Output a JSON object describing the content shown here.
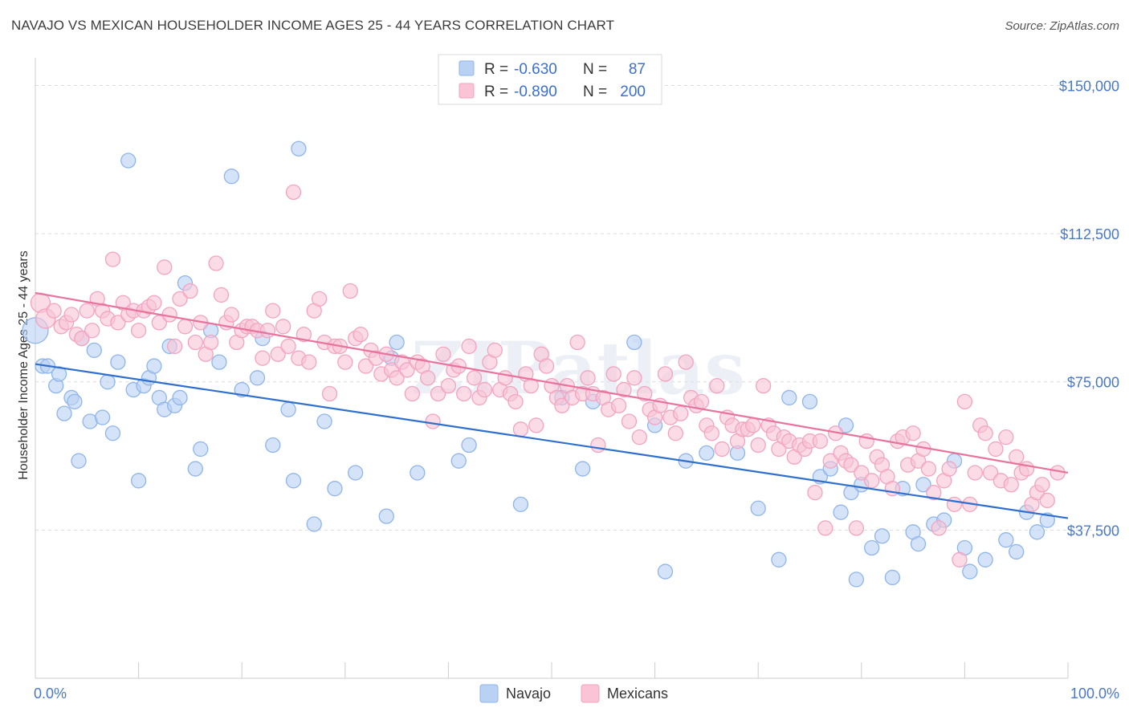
{
  "title": "NAVAJO VS MEXICAN HOUSEHOLDER INCOME AGES 25 - 44 YEARS CORRELATION CHART",
  "source": "Source: ZipAtlas.com",
  "watermark": "ZIPatlas",
  "chart_data": {
    "type": "scatter",
    "ylabel": "Householder Income Ages 25 - 44 years",
    "xlabel": "",
    "xlim": [
      0,
      100
    ],
    "ylim": [
      0,
      157000
    ],
    "x_tick_labels": [
      "0.0%",
      "100.0%"
    ],
    "y_ticks": [
      37500,
      75000,
      112500,
      150000
    ],
    "y_tick_labels": [
      "$37,500",
      "$75,000",
      "$112,500",
      "$150,000"
    ],
    "grid": "horizontal dashed",
    "legend_position": "top-center",
    "stats": [
      {
        "r_label": "R =",
        "r_value": "-0.630",
        "n_label": "N =",
        "n_value": "87"
      },
      {
        "r_label": "R =",
        "r_value": "-0.890",
        "n_label": "N =",
        "n_value": "200"
      }
    ],
    "series": [
      {
        "name": "Navajo",
        "color": "#8fb5ea",
        "fill": "#b9d1f3",
        "line_color": "#2f6fcd",
        "trend": {
          "x0": 0,
          "y0": 79500,
          "x1": 100,
          "y1": 40500
        },
        "points": [
          [
            0,
            88000
          ],
          [
            0.7,
            79000
          ],
          [
            1.2,
            79000
          ],
          [
            2,
            74000
          ],
          [
            2.3,
            77000
          ],
          [
            2.8,
            67000
          ],
          [
            3.5,
            71000
          ],
          [
            3.8,
            70000
          ],
          [
            4.2,
            55000
          ],
          [
            4.5,
            86000
          ],
          [
            5.3,
            65000
          ],
          [
            5.7,
            83000
          ],
          [
            6.5,
            66000
          ],
          [
            7.0,
            75000
          ],
          [
            7.5,
            62000
          ],
          [
            8.0,
            80000
          ],
          [
            9.0,
            131000
          ],
          [
            9.5,
            73000
          ],
          [
            10,
            50000
          ],
          [
            10.5,
            74000
          ],
          [
            11,
            76000
          ],
          [
            11.5,
            79000
          ],
          [
            12,
            71000
          ],
          [
            12.5,
            68000
          ],
          [
            13,
            84000
          ],
          [
            13.5,
            69000
          ],
          [
            14,
            71000
          ],
          [
            14.5,
            100000
          ],
          [
            15.5,
            53000
          ],
          [
            16,
            58000
          ],
          [
            17,
            88000
          ],
          [
            17.8,
            80000
          ],
          [
            19,
            127000
          ],
          [
            20,
            73000
          ],
          [
            21.5,
            76000
          ],
          [
            22,
            86000
          ],
          [
            23,
            59000
          ],
          [
            24.5,
            68000
          ],
          [
            25,
            50000
          ],
          [
            25.5,
            134000
          ],
          [
            27,
            39000
          ],
          [
            28,
            65000
          ],
          [
            29,
            48000
          ],
          [
            31,
            52000
          ],
          [
            34,
            41000
          ],
          [
            34.5,
            81000
          ],
          [
            35,
            85000
          ],
          [
            37,
            52000
          ],
          [
            41,
            55000
          ],
          [
            42,
            59000
          ],
          [
            47,
            44000
          ],
          [
            51,
            71000
          ],
          [
            53,
            53000
          ],
          [
            54,
            70000
          ],
          [
            58,
            85000
          ],
          [
            60,
            64000
          ],
          [
            61,
            27000
          ],
          [
            63,
            55000
          ],
          [
            65,
            57000
          ],
          [
            68,
            57000
          ],
          [
            70,
            43000
          ],
          [
            72,
            30000
          ],
          [
            73,
            71000
          ],
          [
            75,
            70000
          ],
          [
            76,
            51000
          ],
          [
            77,
            53000
          ],
          [
            78,
            42000
          ],
          [
            78.5,
            64000
          ],
          [
            79,
            47000
          ],
          [
            79.5,
            25000
          ],
          [
            80,
            49000
          ],
          [
            81,
            33000
          ],
          [
            82,
            36000
          ],
          [
            83,
            25500
          ],
          [
            84,
            48000
          ],
          [
            85,
            37000
          ],
          [
            85.5,
            34000
          ],
          [
            86,
            49000
          ],
          [
            87,
            39000
          ],
          [
            88,
            40000
          ],
          [
            89,
            55000
          ],
          [
            90,
            33000
          ],
          [
            90.5,
            27000
          ],
          [
            92,
            30000
          ],
          [
            94,
            35000
          ],
          [
            95,
            32000
          ],
          [
            96,
            42000
          ],
          [
            97,
            37000
          ],
          [
            98,
            40000
          ]
        ]
      },
      {
        "name": "Mexicans",
        "color": "#f3a3c0",
        "fill": "#f8c4d6",
        "line_color": "#e8739d",
        "trend": {
          "x0": 0,
          "y0": 97500,
          "x1": 100,
          "y1": 52000
        },
        "points": [
          [
            0.5,
            95000
          ],
          [
            1,
            91000
          ],
          [
            1.8,
            93000
          ],
          [
            2.5,
            89000
          ],
          [
            3,
            90000
          ],
          [
            3.5,
            92000
          ],
          [
            4,
            87000
          ],
          [
            4.5,
            86000
          ],
          [
            5,
            93000
          ],
          [
            5.5,
            88000
          ],
          [
            6,
            96000
          ],
          [
            6.5,
            93000
          ],
          [
            7,
            91000
          ],
          [
            7.5,
            106000
          ],
          [
            8,
            90000
          ],
          [
            8.5,
            95000
          ],
          [
            9,
            92000
          ],
          [
            9.5,
            93000
          ],
          [
            10,
            88000
          ],
          [
            10.5,
            93000
          ],
          [
            11,
            94000
          ],
          [
            11.5,
            95000
          ],
          [
            12,
            90000
          ],
          [
            12.5,
            104000
          ],
          [
            13,
            92000
          ],
          [
            13.5,
            84000
          ],
          [
            14,
            96000
          ],
          [
            14.5,
            89000
          ],
          [
            15,
            98000
          ],
          [
            15.5,
            85000
          ],
          [
            16,
            90000
          ],
          [
            16.5,
            82000
          ],
          [
            17,
            85000
          ],
          [
            17.5,
            105000
          ],
          [
            18,
            97000
          ],
          [
            18.5,
            90000
          ],
          [
            19,
            92000
          ],
          [
            19.5,
            85000
          ],
          [
            20,
            88000
          ],
          [
            20.5,
            89000
          ],
          [
            21,
            89000
          ],
          [
            21.5,
            88000
          ],
          [
            22,
            81000
          ],
          [
            22.5,
            88000
          ],
          [
            23,
            93000
          ],
          [
            23.5,
            82000
          ],
          [
            24,
            89000
          ],
          [
            24.5,
            84000
          ],
          [
            25,
            123000
          ],
          [
            25.5,
            81000
          ],
          [
            26,
            87000
          ],
          [
            26.5,
            80000
          ],
          [
            27,
            93000
          ],
          [
            27.5,
            96000
          ],
          [
            28,
            85000
          ],
          [
            28.5,
            72000
          ],
          [
            29,
            84000
          ],
          [
            29.5,
            84000
          ],
          [
            30,
            80000
          ],
          [
            30.5,
            98000
          ],
          [
            31,
            86000
          ],
          [
            31.5,
            87000
          ],
          [
            32,
            79000
          ],
          [
            32.5,
            83000
          ],
          [
            33,
            81000
          ],
          [
            33.5,
            77000
          ],
          [
            34,
            82000
          ],
          [
            34.5,
            78000
          ],
          [
            35,
            76000
          ],
          [
            35.5,
            80000
          ],
          [
            36,
            78000
          ],
          [
            36.5,
            72000
          ],
          [
            37,
            80000
          ],
          [
            37.5,
            79000
          ],
          [
            38,
            76000
          ],
          [
            38.5,
            65000
          ],
          [
            39,
            72000
          ],
          [
            39.5,
            82000
          ],
          [
            40,
            74000
          ],
          [
            40.5,
            78000
          ],
          [
            41,
            79000
          ],
          [
            41.5,
            72000
          ],
          [
            42,
            84000
          ],
          [
            42.5,
            76000
          ],
          [
            43,
            71000
          ],
          [
            43.5,
            73000
          ],
          [
            44,
            80000
          ],
          [
            44.5,
            83000
          ],
          [
            45,
            73000
          ],
          [
            45.5,
            76000
          ],
          [
            46,
            72000
          ],
          [
            46.5,
            70000
          ],
          [
            47,
            63000
          ],
          [
            47.5,
            77000
          ],
          [
            48,
            74000
          ],
          [
            48.5,
            64000
          ],
          [
            49,
            82000
          ],
          [
            49.5,
            79000
          ],
          [
            50,
            74000
          ],
          [
            50.5,
            71000
          ],
          [
            51,
            69000
          ],
          [
            51.5,
            74000
          ],
          [
            52,
            71000
          ],
          [
            52.5,
            85000
          ],
          [
            53,
            72000
          ],
          [
            53.5,
            76000
          ],
          [
            54,
            72000
          ],
          [
            54.5,
            59000
          ],
          [
            55,
            71000
          ],
          [
            55.5,
            68000
          ],
          [
            56,
            77000
          ],
          [
            56.5,
            69000
          ],
          [
            57,
            73000
          ],
          [
            57.5,
            65000
          ],
          [
            58,
            76000
          ],
          [
            58.5,
            61000
          ],
          [
            59,
            72000
          ],
          [
            59.5,
            68000
          ],
          [
            60,
            66000
          ],
          [
            60.5,
            69000
          ],
          [
            61,
            77000
          ],
          [
            61.5,
            66000
          ],
          [
            62,
            62000
          ],
          [
            62.5,
            67000
          ],
          [
            63,
            80000
          ],
          [
            63.5,
            71000
          ],
          [
            64,
            69000
          ],
          [
            64.5,
            70000
          ],
          [
            65,
            64000
          ],
          [
            65.5,
            62000
          ],
          [
            66,
            74000
          ],
          [
            66.5,
            58000
          ],
          [
            67,
            66000
          ],
          [
            67.5,
            64000
          ],
          [
            68,
            60000
          ],
          [
            68.5,
            63000
          ],
          [
            69,
            63000
          ],
          [
            69.5,
            64000
          ],
          [
            70,
            59000
          ],
          [
            70.5,
            74000
          ],
          [
            71,
            64000
          ],
          [
            71.5,
            62000
          ],
          [
            72,
            58000
          ],
          [
            72.5,
            61000
          ],
          [
            73,
            60000
          ],
          [
            73.5,
            56000
          ],
          [
            74,
            59000
          ],
          [
            74.5,
            58000
          ],
          [
            75,
            60000
          ],
          [
            75.5,
            47000
          ],
          [
            76,
            60000
          ],
          [
            76.5,
            38000
          ],
          [
            77,
            55000
          ],
          [
            77.5,
            62000
          ],
          [
            78,
            57000
          ],
          [
            78.5,
            55000
          ],
          [
            79,
            54000
          ],
          [
            79.5,
            38000
          ],
          [
            80,
            52000
          ],
          [
            80.5,
            60000
          ],
          [
            81,
            50000
          ],
          [
            81.5,
            56000
          ],
          [
            82,
            54000
          ],
          [
            82.5,
            51000
          ],
          [
            83,
            48000
          ],
          [
            83.5,
            60000
          ],
          [
            84,
            61000
          ],
          [
            84.5,
            54000
          ],
          [
            85,
            62000
          ],
          [
            85.5,
            55000
          ],
          [
            86,
            58000
          ],
          [
            86.5,
            53000
          ],
          [
            87,
            47000
          ],
          [
            87.5,
            38000
          ],
          [
            88,
            50000
          ],
          [
            88.5,
            53000
          ],
          [
            89,
            44000
          ],
          [
            89.5,
            30000
          ],
          [
            90,
            70000
          ],
          [
            90.5,
            44000
          ],
          [
            91,
            52000
          ],
          [
            91.5,
            64000
          ],
          [
            92,
            62000
          ],
          [
            92.5,
            52000
          ],
          [
            93,
            58000
          ],
          [
            93.5,
            50000
          ],
          [
            94,
            61000
          ],
          [
            94.5,
            49000
          ],
          [
            95,
            56000
          ],
          [
            95.5,
            52000
          ],
          [
            96,
            53000
          ],
          [
            96.5,
            44000
          ],
          [
            97,
            47000
          ],
          [
            97.5,
            49000
          ],
          [
            98,
            45000
          ],
          [
            99,
            52000
          ]
        ]
      }
    ]
  }
}
